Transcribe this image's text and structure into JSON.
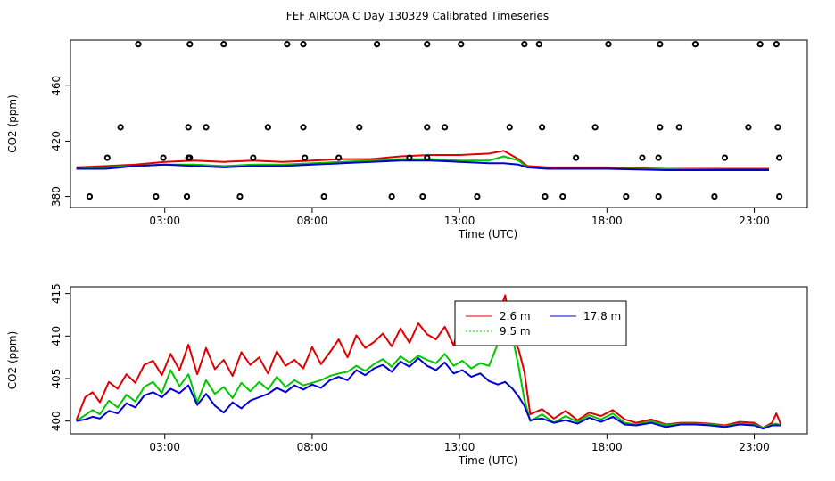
{
  "page_title": "FEF AIRCOA C  Day 130329  Calibrated Timeseries",
  "colors": {
    "red": "#e00000",
    "green": "#00c800",
    "blue": "#0000d0",
    "axis": "#000000"
  },
  "chart_data": [
    {
      "type": "scatter",
      "title": "",
      "xlabel": "Time (UTC)",
      "ylabel": "CO2 (ppm)",
      "xlim": [
        -0.2,
        24.8
      ],
      "ylim": [
        372,
        493
      ],
      "xticks": [
        3,
        8,
        13,
        18,
        23
      ],
      "xtick_labels": [
        "03:00",
        "08:00",
        "13:00",
        "18:00",
        "23:00"
      ],
      "yticks": [
        380,
        420,
        460
      ],
      "ytick_labels": [
        "380",
        "420",
        "460"
      ],
      "points": {
        "x": [
          2.1,
          3.85,
          5.0,
          7.15,
          7.7,
          10.2,
          11.9,
          13.05,
          15.2,
          15.7,
          18.05,
          19.8,
          21.0,
          23.2,
          23.75,
          1.5,
          3.8,
          4.4,
          6.5,
          7.7,
          9.6,
          11.9,
          12.5,
          14.7,
          15.8,
          17.6,
          19.8,
          20.45,
          22.8,
          23.8,
          1.05,
          2.95,
          3.85,
          3.8,
          6.0,
          7.75,
          8.9,
          11.3,
          11.9,
          16.95,
          19.2,
          19.75,
          22.0,
          23.85,
          0.45,
          2.7,
          3.75,
          5.55,
          8.4,
          10.7,
          11.75,
          13.6,
          15.9,
          16.5,
          18.65,
          19.75,
          21.65,
          23.85
        ],
        "y": [
          490,
          490,
          490,
          490,
          490,
          490,
          490,
          490,
          490,
          490,
          490,
          490,
          490,
          490,
          490,
          430,
          430,
          430,
          430,
          430,
          430,
          430,
          430,
          430,
          430,
          430,
          430,
          430,
          430,
          430,
          408,
          408,
          408,
          408,
          408,
          408,
          408,
          408,
          408,
          408,
          408,
          408,
          408,
          408,
          380,
          380,
          380,
          380,
          380,
          380,
          380,
          380,
          380,
          380,
          380,
          380,
          380,
          380
        ]
      },
      "series": [
        {
          "name": "2.6 m",
          "color": "#e00000",
          "style": "solid",
          "x": [
            0,
            1,
            2,
            3,
            4,
            5,
            6,
            7,
            8,
            9,
            10,
            11,
            12,
            13,
            14,
            14.5,
            15.0,
            15.3,
            16,
            18,
            20,
            22,
            23.5
          ],
          "values": [
            401,
            402,
            403,
            405,
            406,
            405,
            406,
            405,
            406,
            407,
            407,
            409,
            410,
            410,
            411,
            413,
            407,
            402,
            401,
            401,
            400,
            400,
            400
          ]
        },
        {
          "name": "9.5 m",
          "color": "#00c800",
          "style": "dotted",
          "x": [
            0,
            1,
            2,
            3,
            4,
            5,
            6,
            7,
            8,
            9,
            10,
            11,
            12,
            13,
            14,
            14.5,
            15.0,
            15.3,
            16,
            18,
            20,
            22,
            23.5
          ],
          "values": [
            400,
            401,
            402,
            403,
            403,
            402,
            403,
            403,
            404,
            405,
            406,
            407,
            407,
            406,
            406,
            409,
            406,
            401,
            400,
            400,
            400,
            399,
            399
          ]
        },
        {
          "name": "17.8 m",
          "color": "#0000d0",
          "style": "solid",
          "x": [
            0,
            1,
            2,
            3,
            4,
            5,
            6,
            7,
            8,
            9,
            10,
            11,
            12,
            13,
            14,
            14.5,
            15.0,
            15.3,
            16,
            18,
            20,
            22,
            23.5
          ],
          "values": [
            400,
            400,
            402,
            403,
            402,
            401,
            402,
            402,
            403,
            404,
            405,
            406,
            406,
            405,
            404,
            404,
            403,
            401,
            400,
            400,
            399,
            399,
            399
          ]
        }
      ]
    },
    {
      "type": "line",
      "title": "",
      "xlabel": "Time (UTC)",
      "ylabel": "CO2 (ppm)",
      "xlim": [
        -0.2,
        24.8
      ],
      "ylim": [
        398.5,
        415.8
      ],
      "xticks": [
        3,
        8,
        13,
        18,
        23
      ],
      "xtick_labels": [
        "03:00",
        "08:00",
        "13:00",
        "18:00",
        "23:00"
      ],
      "yticks": [
        400,
        405,
        410,
        415
      ],
      "ytick_labels": [
        "400",
        "405",
        "410",
        "415"
      ],
      "legend": {
        "position": "top-center",
        "entries": [
          "2.6 m",
          "9.5 m",
          "17.8 m"
        ]
      },
      "series": [
        {
          "name": "2.6 m",
          "color": "#e00000",
          "style": "solid",
          "x": [
            0,
            0.3,
            0.55,
            0.8,
            1.1,
            1.4,
            1.7,
            2.0,
            2.3,
            2.6,
            2.9,
            3.2,
            3.5,
            3.8,
            4.1,
            4.4,
            4.7,
            5.0,
            5.3,
            5.6,
            5.9,
            6.2,
            6.5,
            6.8,
            7.1,
            7.4,
            7.7,
            8.0,
            8.3,
            8.6,
            8.9,
            9.2,
            9.5,
            9.8,
            10.1,
            10.4,
            10.7,
            11.0,
            11.3,
            11.6,
            11.9,
            12.2,
            12.5,
            12.8,
            13.1,
            13.4,
            13.7,
            14.0,
            14.3,
            14.55,
            14.8,
            15.0,
            15.2,
            15.4,
            15.8,
            16.2,
            16.6,
            17.0,
            17.4,
            17.8,
            18.2,
            18.6,
            19.0,
            19.5,
            20.0,
            20.5,
            21.0,
            21.5,
            22.0,
            22.5,
            23.0,
            23.3,
            23.6,
            23.75,
            23.9
          ],
          "values": [
            400.1,
            402.8,
            403.4,
            402.2,
            404.6,
            403.8,
            405.5,
            404.5,
            406.6,
            407.1,
            405.4,
            407.9,
            406.0,
            409.0,
            405.5,
            408.6,
            406.1,
            407.2,
            405.3,
            408.1,
            406.6,
            407.5,
            405.6,
            408.2,
            406.5,
            407.2,
            406.2,
            408.7,
            406.7,
            408.1,
            409.6,
            407.5,
            410.1,
            408.6,
            409.3,
            410.3,
            408.8,
            410.9,
            409.2,
            411.5,
            410.2,
            409.6,
            411.1,
            408.9,
            412.6,
            410.2,
            411.3,
            409.6,
            412.3,
            414.8,
            409.6,
            408.5,
            405.8,
            400.8,
            401.4,
            400.3,
            401.2,
            400.1,
            401.0,
            400.6,
            401.3,
            400.2,
            399.8,
            400.2,
            399.6,
            399.8,
            399.8,
            399.7,
            399.5,
            399.9,
            399.8,
            399.2,
            399.8,
            400.9,
            399.6
          ]
        },
        {
          "name": "9.5 m",
          "color": "#00c800",
          "style": "dotted",
          "x": [
            0,
            0.3,
            0.55,
            0.8,
            1.1,
            1.4,
            1.7,
            2.0,
            2.3,
            2.6,
            2.9,
            3.2,
            3.5,
            3.8,
            4.1,
            4.4,
            4.7,
            5.0,
            5.3,
            5.6,
            5.9,
            6.2,
            6.5,
            6.8,
            7.1,
            7.4,
            7.7,
            8.0,
            8.3,
            8.6,
            8.9,
            9.2,
            9.5,
            9.8,
            10.1,
            10.4,
            10.7,
            11.0,
            11.3,
            11.6,
            11.9,
            12.2,
            12.5,
            12.8,
            13.1,
            13.4,
            13.7,
            14.0,
            14.3,
            14.55,
            14.8,
            15.0,
            15.2,
            15.4,
            15.8,
            16.2,
            16.6,
            17.0,
            17.4,
            17.8,
            18.2,
            18.6,
            19.0,
            19.5,
            20.0,
            20.5,
            21.0,
            21.5,
            22.0,
            22.5,
            23.0,
            23.3,
            23.6,
            23.75,
            23.9
          ],
          "values": [
            400.0,
            400.7,
            401.3,
            400.8,
            402.4,
            401.6,
            403.1,
            402.3,
            404.0,
            404.6,
            403.3,
            406.0,
            404.1,
            405.5,
            402.2,
            404.8,
            403.2,
            404.0,
            402.7,
            404.5,
            403.5,
            404.6,
            403.7,
            405.2,
            404.0,
            404.8,
            404.2,
            404.5,
            404.8,
            405.3,
            405.6,
            405.8,
            406.5,
            405.9,
            406.7,
            407.3,
            406.4,
            407.6,
            406.9,
            407.7,
            407.2,
            406.8,
            407.9,
            406.5,
            407.1,
            406.2,
            406.8,
            406.5,
            409.1,
            412.1,
            409.8,
            406.5,
            402.5,
            400.0,
            400.8,
            399.8,
            400.6,
            399.9,
            400.7,
            400.2,
            400.9,
            399.8,
            399.6,
            400.0,
            399.5,
            399.7,
            399.7,
            399.6,
            399.4,
            399.7,
            399.6,
            399.2,
            399.6,
            399.7,
            399.5
          ]
        },
        {
          "name": "17.8 m",
          "color": "#0000d0",
          "style": "solid",
          "x": [
            0,
            0.3,
            0.55,
            0.8,
            1.1,
            1.4,
            1.7,
            2.0,
            2.3,
            2.6,
            2.9,
            3.2,
            3.5,
            3.8,
            4.1,
            4.4,
            4.7,
            5.0,
            5.3,
            5.6,
            5.9,
            6.2,
            6.5,
            6.8,
            7.1,
            7.4,
            7.7,
            8.0,
            8.3,
            8.6,
            8.9,
            9.2,
            9.5,
            9.8,
            10.1,
            10.4,
            10.7,
            11.0,
            11.3,
            11.6,
            11.9,
            12.2,
            12.5,
            12.8,
            13.1,
            13.4,
            13.7,
            14.0,
            14.3,
            14.55,
            14.8,
            15.0,
            15.2,
            15.4,
            15.8,
            16.2,
            16.6,
            17.0,
            17.4,
            17.8,
            18.2,
            18.6,
            19.0,
            19.5,
            20.0,
            20.5,
            21.0,
            21.5,
            22.0,
            22.5,
            23.0,
            23.3,
            23.6,
            23.75,
            23.9
          ],
          "values": [
            400.0,
            400.2,
            400.5,
            400.3,
            401.2,
            400.9,
            402.1,
            401.6,
            403.0,
            403.4,
            402.8,
            403.8,
            403.3,
            404.2,
            401.9,
            403.2,
            401.8,
            401.0,
            402.2,
            401.5,
            402.4,
            402.8,
            403.2,
            403.9,
            403.4,
            404.2,
            403.7,
            404.3,
            403.9,
            404.8,
            405.2,
            404.8,
            406.0,
            405.4,
            406.2,
            406.6,
            405.8,
            407.0,
            406.4,
            407.4,
            406.5,
            406.0,
            406.9,
            405.6,
            406.0,
            405.2,
            405.6,
            404.7,
            404.3,
            404.6,
            403.8,
            402.9,
            401.8,
            400.1,
            400.3,
            399.8,
            400.1,
            399.7,
            400.4,
            399.9,
            400.5,
            399.6,
            399.5,
            399.8,
            399.3,
            399.6,
            399.6,
            399.5,
            399.3,
            399.6,
            399.5,
            399.1,
            399.5,
            399.5,
            399.5
          ]
        }
      ]
    }
  ]
}
